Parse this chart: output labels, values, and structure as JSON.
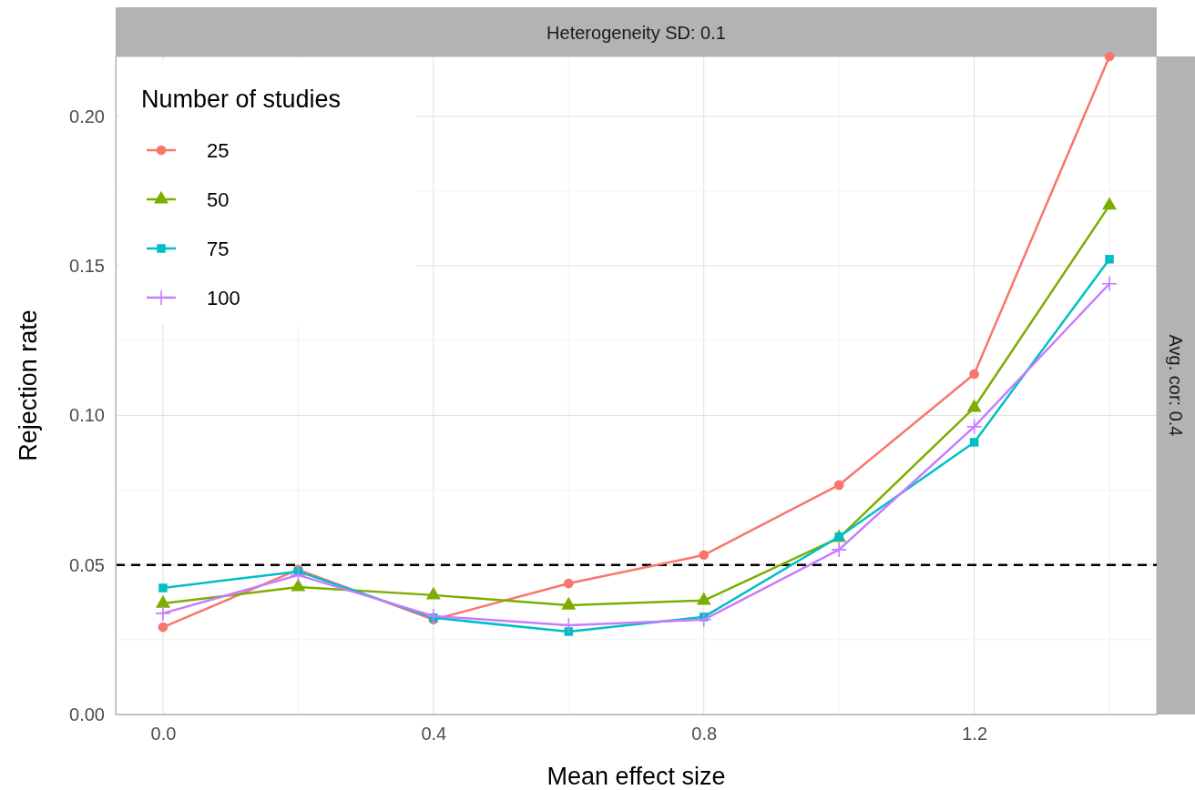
{
  "chart_data": {
    "type": "line",
    "title": "Heterogeneity SD: 0.1",
    "xlabel": "Mean effect size",
    "ylabel": "Rejection rate",
    "legend_title": "Number of studies",
    "annotations": [
      "Avg. cor: 0.4"
    ],
    "x": [
      0,
      0.2,
      0.4,
      0.6,
      0.8,
      1.0,
      1.2,
      1.4
    ],
    "xlim": [
      -0.07,
      1.47
    ],
    "ylim": [
      0,
      0.22
    ],
    "xticks": [
      {
        "value": 0,
        "label": "0.0"
      },
      {
        "value": 0.2,
        "label": null
      },
      {
        "value": 0.4,
        "label": "0.4"
      },
      {
        "value": 0.6,
        "label": null
      },
      0.8,
      {
        "value": 1.0,
        "label": null
      },
      1.2,
      {
        "value": 1.4,
        "label": null
      }
    ],
    "yticks": [
      {
        "value": 0,
        "label": "0.00"
      },
      {
        "value": 0.025,
        "label": null
      },
      0.05,
      {
        "value": 0.075,
        "label": null
      },
      {
        "value": 0.1,
        "label": "0.10"
      },
      {
        "value": 0.125,
        "label": null
      },
      0.15,
      {
        "value": 0.175,
        "label": null
      },
      {
        "value": 0.2,
        "label": "0.20"
      }
    ],
    "grid": true,
    "legend": "top left",
    "ref_lines": [
      {
        "axis": "y",
        "value": 0.05,
        "color": "#000000",
        "line_style": "dashed"
      }
    ],
    "series": [
      {
        "name": "25",
        "color": "#f8766d",
        "marker": "circle",
        "values": [
          0.0292,
          0.0484,
          0.0317,
          0.0438,
          0.0533,
          0.0767,
          0.1138,
          0.22
        ]
      },
      {
        "name": "50",
        "color": "#7cae00",
        "marker": "triangle",
        "values": [
          0.0371,
          0.0426,
          0.0399,
          0.0365,
          0.0381,
          0.0591,
          0.1026,
          0.1702
        ]
      },
      {
        "name": "75",
        "color": "#00bfc4",
        "marker": "square",
        "values": [
          0.0423,
          0.0478,
          0.0323,
          0.0277,
          0.0326,
          0.0594,
          0.091,
          0.1522
        ]
      },
      {
        "name": "100",
        "color": "#c77cff",
        "marker": "cross",
        "values": [
          0.0338,
          0.0466,
          0.0329,
          0.0298,
          0.0317,
          0.0551,
          0.0962,
          0.144
        ]
      }
    ]
  }
}
